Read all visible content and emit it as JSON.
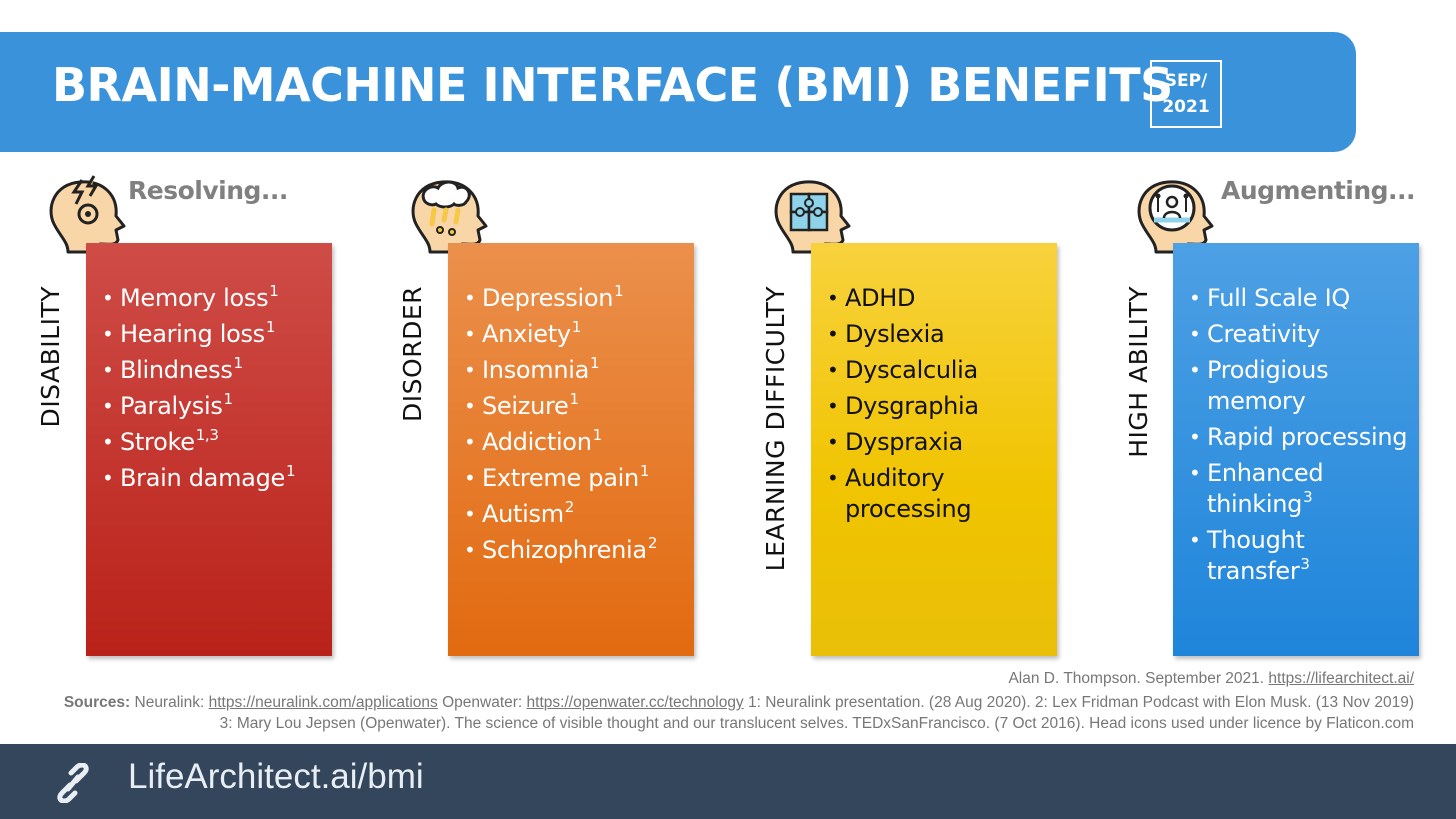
{
  "header": {
    "title": "BRAIN-MACHINE INTERFACE (BMI) BENEFITS",
    "date_line1": "SEP/",
    "date_line2": "2021"
  },
  "captions": {
    "resolving": "Resolving...",
    "augmenting": "Augmenting..."
  },
  "columns": [
    {
      "label": "DISABILITY",
      "icon": "head-lightning-icon",
      "color": "#c0302a",
      "items": [
        {
          "text": "Memory loss",
          "sup": "1"
        },
        {
          "text": "Hearing loss",
          "sup": "1"
        },
        {
          "text": "Blindness",
          "sup": "1"
        },
        {
          "text": "Paralysis",
          "sup": "1"
        },
        {
          "text": "Stroke",
          "sup": "1,3"
        },
        {
          "text": "Brain damage",
          "sup": "1"
        }
      ]
    },
    {
      "label": "DISORDER",
      "icon": "head-storm-icon",
      "color": "#e5781f",
      "items": [
        {
          "text": "Depression",
          "sup": "1"
        },
        {
          "text": "Anxiety",
          "sup": "1"
        },
        {
          "text": "Insomnia",
          "sup": "1"
        },
        {
          "text": "Seizure",
          "sup": "1"
        },
        {
          "text": "Addiction",
          "sup": "1"
        },
        {
          "text": "Extreme pain",
          "sup": "1"
        },
        {
          "text": "Autism",
          "sup": "2"
        },
        {
          "text": "Schizophrenia",
          "sup": "2"
        }
      ]
    },
    {
      "label": "LEARNING DIFFICULTY",
      "icon": "head-puzzle-icon",
      "color": "#f2c40c",
      "items": [
        {
          "text": "ADHD",
          "sup": ""
        },
        {
          "text": "Dyslexia",
          "sup": ""
        },
        {
          "text": "Dyscalculia",
          "sup": ""
        },
        {
          "text": "Dysgraphia",
          "sup": ""
        },
        {
          "text": "Dyspraxia",
          "sup": ""
        },
        {
          "text": "Auditory processing",
          "sup": ""
        }
      ]
    },
    {
      "label": "HIGH ABILITY",
      "icon": "head-circuit-icon",
      "color": "#2a8ddc",
      "items": [
        {
          "text": "Full Scale IQ",
          "sup": ""
        },
        {
          "text": "Creativity",
          "sup": ""
        },
        {
          "text": "Prodigious memory",
          "sup": ""
        },
        {
          "text": "Rapid processing",
          "sup": ""
        },
        {
          "text": "Enhanced thinking",
          "sup": "3"
        },
        {
          "text": "Thought transfer",
          "sup": "3"
        }
      ]
    }
  ],
  "credit": {
    "text": "Alan D. Thompson. September 2021.",
    "link": "https://lifearchitect.ai/"
  },
  "sources": {
    "label": "Sources:",
    "neuralink_prefix": "Neuralink:",
    "neuralink_link": "https://neuralink.com/applications",
    "openwater_prefix": "Openwater:",
    "openwater_link": "https://openwater.cc/technology",
    "line1_rest": "1: Neuralink presentation. (28 Aug 2020). 2: Lex Fridman Podcast with Elon Musk. (13 Nov 2019)",
    "line2": "3: Mary Lou Jepsen (Openwater). The science of visible thought and our translucent selves. TEDxSanFrancisco. (7 Oct 2016). Head icons used under licence by Flaticon.com"
  },
  "footer": {
    "site": "LifeArchitect.ai/bmi",
    "icon": "link-icon"
  }
}
